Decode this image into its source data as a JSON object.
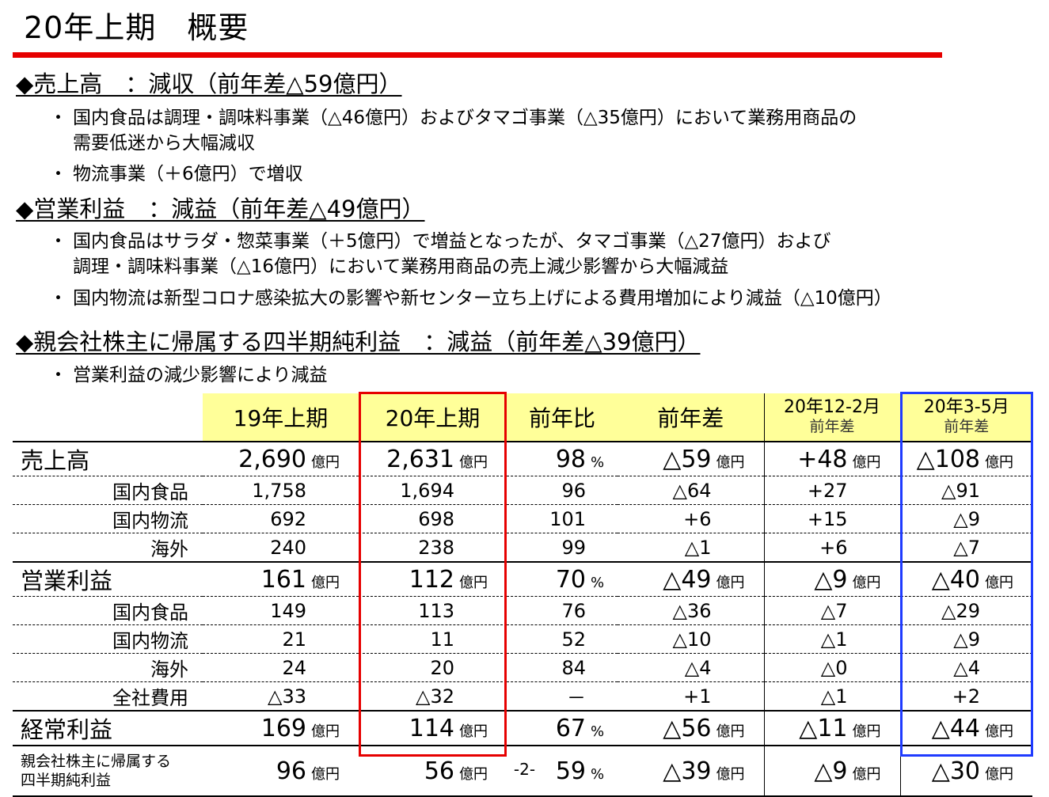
{
  "title": "20年上期　概要",
  "sections": [
    {
      "heading": "◆売上高　：減収（前年差△59億円）",
      "bullets": [
        {
          "line1": "国内食品は調理・調味料事業（△46億円）およびタマゴ事業（△35億円）において業務用商品の",
          "line2": "需要低迷から大幅減収"
        },
        {
          "line1": "物流事業（＋6億円）で増収",
          "line2": ""
        }
      ]
    },
    {
      "heading": "◆営業利益　：減益（前年差△49億円）",
      "bullets": [
        {
          "line1": "国内食品はサラダ・惣菜事業（＋5億円）で増益となったが、タマゴ事業（△27億円）および",
          "line2": "調理・調味料事業（△16億円）において業務用商品の売上減少影響から大幅減益"
        },
        {
          "line1": "国内物流は新型コロナ感染拡大の影響や新センター立ち上げによる費用増加により減益（△10億円）",
          "line2": ""
        }
      ]
    },
    {
      "heading": "◆親会社株主に帰属する四半期純利益　：減益（前年差△39億円）",
      "bullets": [
        {
          "line1": "営業利益の減少影響により減益",
          "line2": ""
        }
      ]
    }
  ],
  "bullet_mark": "・",
  "table": {
    "headers": {
      "h19": "19年上期",
      "h20": "20年上期",
      "yoy_ratio": "前年比",
      "yoy_diff": "前年差",
      "q1_title": "20年12-2月",
      "q1_sub": "前年差",
      "q2_title": "20年3-5月",
      "q2_sub": "前年差"
    },
    "unit_oku": "億円",
    "unit_pct": "%",
    "rows": [
      {
        "label": "売上高",
        "kind": "main",
        "v19": "2,690",
        "v20": "2,631",
        "ratio": "98",
        "diff": "△59",
        "q1": "+48",
        "q2": "△108",
        "units": true
      },
      {
        "label": "国内食品",
        "kind": "sub",
        "v19": "1,758",
        "v20": "1,694",
        "ratio": "96",
        "diff": "△64",
        "q1": "+27",
        "q2": "△91",
        "units": false
      },
      {
        "label": "国内物流",
        "kind": "sub",
        "v19": "692",
        "v20": "698",
        "ratio": "101",
        "diff": "+6",
        "q1": "+15",
        "q2": "△9",
        "units": false
      },
      {
        "label": "海外",
        "kind": "sub",
        "v19": "240",
        "v20": "238",
        "ratio": "99",
        "diff": "△1",
        "q1": "+6",
        "q2": "△7",
        "units": false
      },
      {
        "label": "営業利益",
        "kind": "main",
        "v19": "161",
        "v20": "112",
        "ratio": "70",
        "diff": "△49",
        "q1": "△9",
        "q2": "△40",
        "units": true
      },
      {
        "label": "国内食品",
        "kind": "sub",
        "v19": "149",
        "v20": "113",
        "ratio": "76",
        "diff": "△36",
        "q1": "△7",
        "q2": "△29",
        "units": false
      },
      {
        "label": "国内物流",
        "kind": "sub",
        "v19": "21",
        "v20": "11",
        "ratio": "52",
        "diff": "△10",
        "q1": "△1",
        "q2": "△9",
        "units": false
      },
      {
        "label": "海外",
        "kind": "sub",
        "v19": "24",
        "v20": "20",
        "ratio": "84",
        "diff": "△4",
        "q1": "△0",
        "q2": "△4",
        "units": false
      },
      {
        "label": "全社費用",
        "kind": "sub",
        "v19": "△33",
        "v20": "△32",
        "ratio": "－",
        "diff": "+1",
        "q1": "△1",
        "q2": "+2",
        "units": false
      },
      {
        "label": "経常利益",
        "kind": "main",
        "v19": "169",
        "v20": "114",
        "ratio": "67",
        "diff": "△56",
        "q1": "△11",
        "q2": "△44",
        "units": true
      },
      {
        "label": "親会社株主に帰属する\n四半期純利益",
        "label1": "親会社株主に帰属する",
        "label2": "四半期純利益",
        "kind": "tiny",
        "v19": "96",
        "v20": "56",
        "ratio": "59",
        "diff": "△39",
        "q1": "△9",
        "q2": "△30",
        "units": true
      }
    ]
  },
  "page_number": "-2-"
}
